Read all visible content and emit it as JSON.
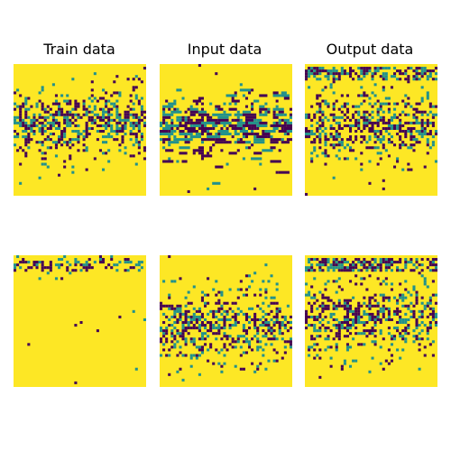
{
  "titles": [
    "Train data",
    "Input data",
    "Output data"
  ],
  "chart_data": [
    {
      "type": "heatmap",
      "title": "Train data",
      "rows": 48,
      "cols": 48,
      "colorscale": {
        "low": "#440154",
        "mid": "#21918c",
        "high": "#fde725"
      },
      "value_range": [
        0,
        1
      ],
      "pattern": "dense dark band rows 12-30, speckled rows 4-38",
      "band_center_row": 21,
      "band_half_width": 8,
      "speckle_spread_rows": 17
    },
    {
      "type": "heatmap",
      "title": "Input data",
      "rows": 48,
      "cols": 48,
      "colorscale": {
        "low": "#440154",
        "mid": "#21918c",
        "high": "#fde725"
      },
      "value_range": [
        0,
        1
      ],
      "pattern": "horizontal dark dashes across rows 6-38",
      "band_center_row": 22,
      "band_half_width": 6,
      "speckle_spread_rows": 16
    },
    {
      "type": "heatmap",
      "title": "Output data",
      "rows": 48,
      "cols": 48,
      "colorscale": {
        "low": "#440154",
        "mid": "#21918c",
        "high": "#fde725"
      },
      "value_range": [
        0,
        1
      ],
      "pattern": "dark band at top rows 2-5 plus dense band rows 14-30",
      "band_center_row": 22,
      "band_half_width": 8,
      "speckle_spread_rows": 17
    },
    {
      "type": "heatmap",
      "title": "",
      "rows": 48,
      "cols": 48,
      "colorscale": {
        "low": "#440154",
        "mid": "#21918c",
        "high": "#fde725"
      },
      "value_range": [
        0,
        1
      ],
      "pattern": "dark band only in top rows 0-6, rest uniform high",
      "band_center_row": 3,
      "band_half_width": 2,
      "speckle_spread_rows": 3
    },
    {
      "type": "heatmap",
      "title": "",
      "rows": 48,
      "cols": 48,
      "colorscale": {
        "low": "#440154",
        "mid": "#21918c",
        "high": "#fde725"
      },
      "value_range": [
        0,
        1
      ],
      "pattern": "dense dark band rows 18-32, speckled rows 2-44",
      "band_center_row": 25,
      "band_half_width": 8,
      "speckle_spread_rows": 20
    },
    {
      "type": "heatmap",
      "title": "",
      "rows": 48,
      "cols": 48,
      "colorscale": {
        "low": "#440154",
        "mid": "#21918c",
        "high": "#fde725"
      },
      "value_range": [
        0,
        1
      ],
      "pattern": "dark band at top rows 2-6 plus dense band rows 16-32",
      "band_center_row": 22,
      "band_half_width": 8,
      "speckle_spread_rows": 20
    }
  ]
}
